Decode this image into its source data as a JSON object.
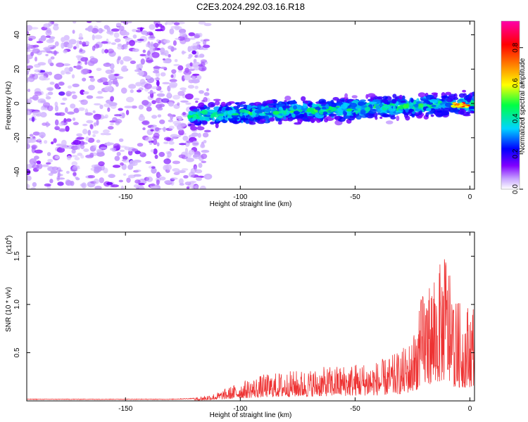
{
  "title": "C2E3.2024.292.03.16.R18",
  "chart_data": [
    {
      "type": "heatmap",
      "xlabel": "Height of straight line (km)",
      "ylabel": "Frequency (Hz)",
      "xlim": [
        -193,
        2
      ],
      "ylim": [
        -50,
        48
      ],
      "xticks": [
        -150,
        -100,
        -50,
        0
      ],
      "yticks": [
        -40,
        -20,
        0,
        20,
        40
      ],
      "colorbar": {
        "label": "Normalized spectral amplitude",
        "range": [
          0,
          0.95
        ],
        "ticks": [
          0,
          0.2,
          0.4,
          0.6,
          0.8
        ],
        "colormap": [
          "#ffffff",
          "#8000ff",
          "#0000ff",
          "#00d4ff",
          "#00ff44",
          "#ffff00",
          "#ff8000",
          "#ff0000",
          "#ff00aa"
        ]
      },
      "regions": [
        {
          "x_range": [
            -193,
            -122
          ],
          "freq_range": [
            -50,
            48
          ],
          "character": "diffuse noise",
          "level": "low"
        },
        {
          "x_range": [
            -122,
            2
          ],
          "center_freq_start": -7,
          "center_freq_end": 0,
          "bandwidth_hz": 16,
          "level": "moderate to high"
        },
        {
          "x_range": [
            -8,
            0
          ],
          "center_freq": -1,
          "level": "max"
        }
      ]
    },
    {
      "type": "line",
      "xlabel": "Height of straight line (km)",
      "ylabel": "SNR (10 * v/v)",
      "yscale_note": "(x10",
      "yscale_exp": "4",
      "xlim": [
        -193,
        2
      ],
      "ylim": [
        0,
        1.75
      ],
      "xticks": [
        -150,
        -100,
        -50,
        0
      ],
      "yticks": [
        0.5,
        1.0,
        1.5
      ],
      "series": [
        {
          "color": "#ee3333",
          "envelope_x": [
            -193,
            -130,
            -120,
            -110,
            -105,
            -100,
            -90,
            -80,
            -70,
            -60,
            -50,
            -40,
            -35,
            -30,
            -25,
            -22,
            -20,
            -15,
            -12,
            -10,
            -8,
            -5,
            -3,
            0,
            2
          ],
          "envelope_y": [
            0.02,
            0.02,
            0.03,
            0.08,
            0.13,
            0.18,
            0.25,
            0.28,
            0.3,
            0.33,
            0.36,
            0.38,
            0.42,
            0.48,
            0.6,
            0.9,
            1.1,
            1.2,
            1.35,
            1.5,
            1.0,
            0.95,
            0.9,
            0.95,
            1.0
          ]
        }
      ]
    }
  ]
}
